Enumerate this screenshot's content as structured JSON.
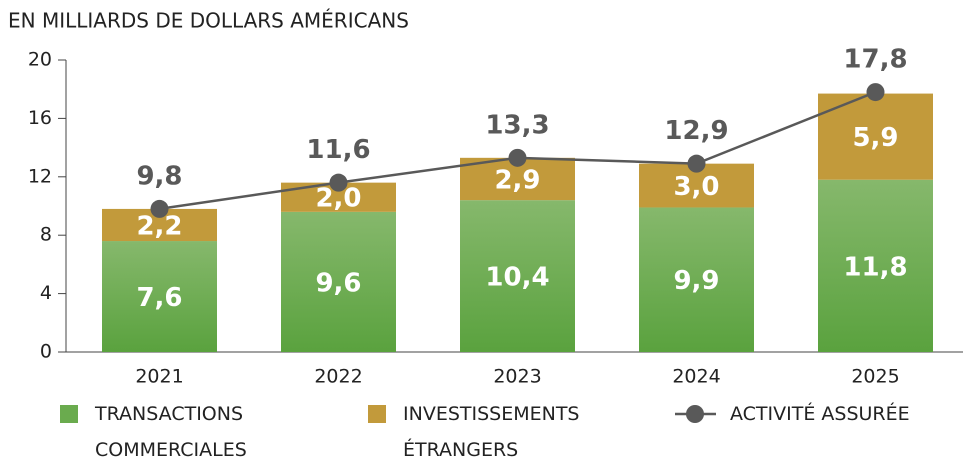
{
  "chart_data": {
    "type": "bar",
    "stacked": true,
    "title": "EN MILLIARDS DE DOLLARS AMÉRICANS",
    "categories": [
      "2021",
      "2022",
      "2023",
      "2024",
      "2025"
    ],
    "series": [
      {
        "name": "TRANSACTIONS COMMERCIALES",
        "color": "#6aab4e",
        "values": [
          7.6,
          9.6,
          10.4,
          9.9,
          11.8
        ],
        "value_labels": [
          "7,6",
          "9,6",
          "10,4",
          "9,9",
          "11,8"
        ]
      },
      {
        "name": "INVESTISSEMENTS ÉTRANGERS",
        "color": "#c29a3b",
        "values": [
          2.2,
          2.0,
          2.9,
          3.0,
          5.9
        ],
        "value_labels": [
          "2,2",
          "2,0",
          "2,9",
          "3,0",
          "5,9"
        ]
      },
      {
        "name": "ACTIVITÉ ASSURÉE",
        "type": "line",
        "color": "#595959",
        "values": [
          9.8,
          11.6,
          13.3,
          12.9,
          17.8
        ],
        "value_labels": [
          "9,8",
          "11,6",
          "13,3",
          "12,9",
          "17,8"
        ]
      }
    ],
    "ylim": [
      0,
      20
    ],
    "yticks": [
      0,
      4,
      8,
      12,
      16,
      20
    ],
    "grid": false
  }
}
